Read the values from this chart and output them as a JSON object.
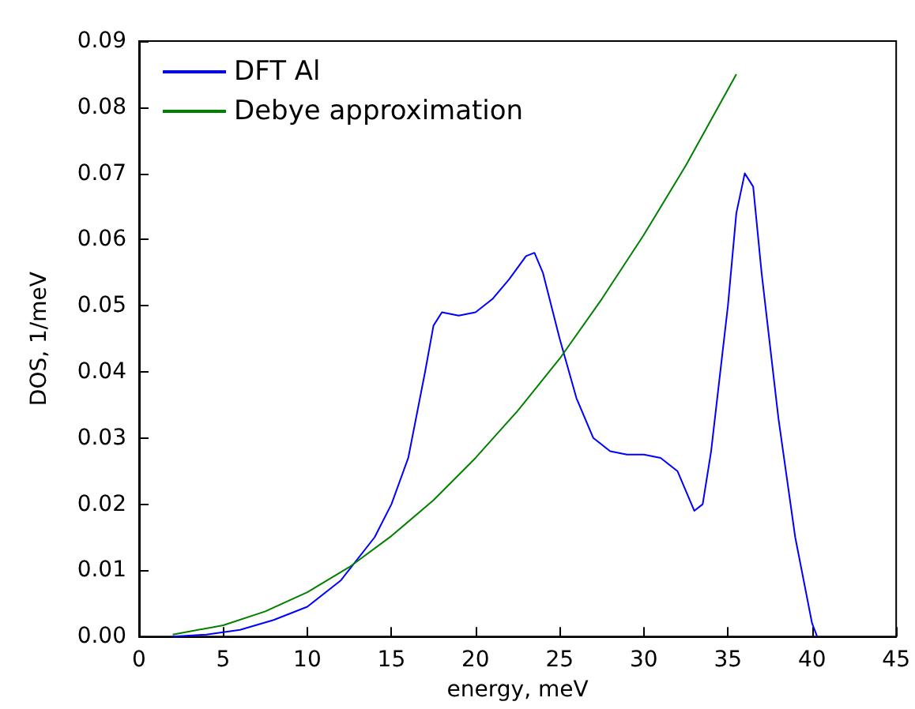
{
  "chart_data": {
    "type": "line",
    "xlabel": "energy, meV",
    "ylabel": "DOS, 1/meV",
    "xlim": [
      0,
      45
    ],
    "xticks": [
      0,
      5,
      10,
      15,
      20,
      25,
      30,
      35,
      40,
      45
    ],
    "ylim": [
      0,
      0.09
    ],
    "yticks": [
      {
        "value": 0,
        "label": "0.00"
      },
      0.01,
      0.02,
      0.03,
      0.04,
      0.05,
      0.06,
      0.07,
      0.08,
      0.09
    ],
    "grid": false,
    "legend": "top left",
    "marker": "none",
    "line_style": "solid",
    "series": [
      {
        "name": "DFT Al",
        "color": "#0000ff",
        "x": [
          2,
          4,
          6,
          8,
          10,
          12,
          14,
          15,
          16,
          17,
          17.5,
          18,
          19,
          20,
          21,
          22,
          23,
          23.5,
          24,
          25,
          26,
          27,
          28,
          29,
          30,
          31,
          32,
          33,
          33.5,
          34,
          35,
          35.5,
          36,
          36.5,
          37,
          38,
          39,
          40,
          40.3
        ],
        "values": [
          0,
          0.0003,
          0.001,
          0.0025,
          0.0045,
          0.0085,
          0.015,
          0.02,
          0.027,
          0.04,
          0.047,
          0.049,
          0.0485,
          0.049,
          0.051,
          0.054,
          0.0575,
          0.058,
          0.055,
          0.045,
          0.036,
          0.03,
          0.028,
          0.0275,
          0.0275,
          0.027,
          0.025,
          0.019,
          0.02,
          0.028,
          0.05,
          0.064,
          0.07,
          0.068,
          0.055,
          0.033,
          0.015,
          0.002,
          0
        ]
      },
      {
        "name": "Debye approximation",
        "color": "#008000",
        "x": [
          2,
          5,
          7.5,
          10,
          12.5,
          15,
          17.5,
          20,
          22.5,
          25,
          27.5,
          30,
          32.5,
          35.5
        ],
        "values": [
          0.0003,
          0.0017,
          0.0038,
          0.0067,
          0.0105,
          0.0152,
          0.0206,
          0.027,
          0.0341,
          0.042,
          0.051,
          0.0607,
          0.0712,
          0.085
        ]
      }
    ]
  }
}
